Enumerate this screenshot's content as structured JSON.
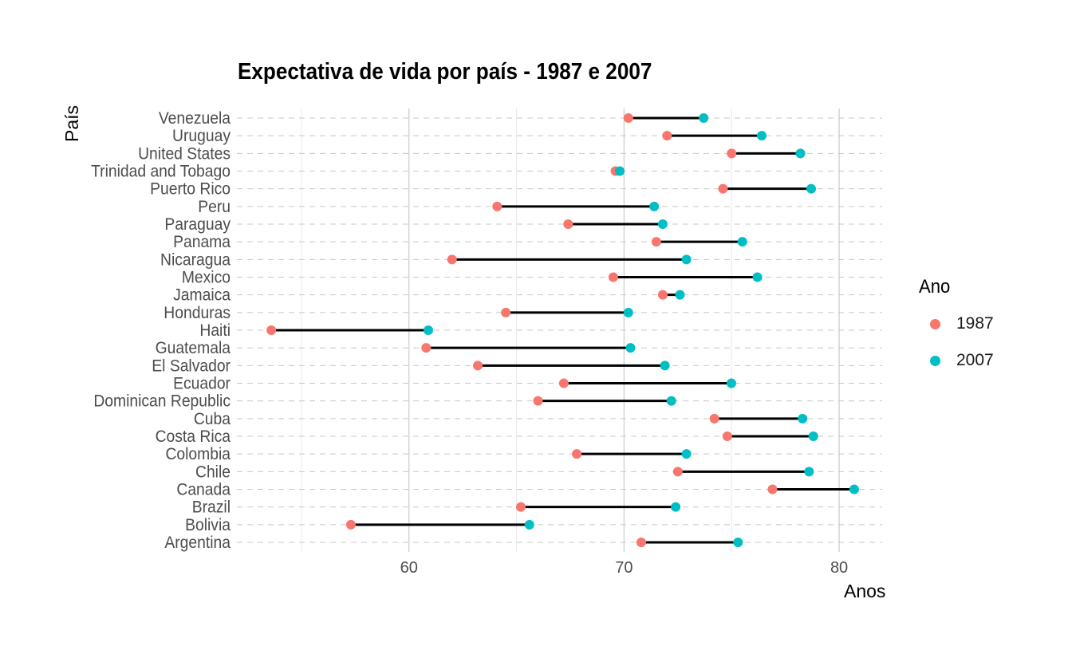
{
  "chart_data": {
    "type": "dumbbell",
    "title": "Expectativa de vida por país - 1987 e 2007",
    "xlabel": "Anos",
    "ylabel": "País",
    "xlim": [
      52,
      82
    ],
    "x_ticks": [
      60,
      70,
      80
    ],
    "grid": true,
    "legend_title": "Ano",
    "legend_position": "right",
    "countries": [
      "Argentina",
      "Bolivia",
      "Brazil",
      "Canada",
      "Chile",
      "Colombia",
      "Costa Rica",
      "Cuba",
      "Dominican Republic",
      "Ecuador",
      "El Salvador",
      "Guatemala",
      "Haiti",
      "Honduras",
      "Jamaica",
      "Mexico",
      "Nicaragua",
      "Panama",
      "Paraguay",
      "Peru",
      "Puerto Rico",
      "Trinidad and Tobago",
      "United States",
      "Uruguay",
      "Venezuela"
    ],
    "series": [
      {
        "name": "1987",
        "color": "#F8766D",
        "values": [
          70.8,
          57.3,
          65.2,
          76.9,
          72.5,
          67.8,
          74.8,
          74.2,
          66.0,
          67.2,
          63.2,
          60.8,
          53.6,
          64.5,
          71.8,
          69.5,
          62.0,
          71.5,
          67.4,
          64.1,
          74.6,
          69.6,
          75.0,
          72.0,
          70.2
        ]
      },
      {
        "name": "2007",
        "color": "#00BFC4",
        "values": [
          75.3,
          65.6,
          72.4,
          80.7,
          78.6,
          72.9,
          78.8,
          78.3,
          72.2,
          74.99,
          71.9,
          70.3,
          60.9,
          70.2,
          72.6,
          76.2,
          72.9,
          75.5,
          71.8,
          71.4,
          78.7,
          69.8,
          78.2,
          76.4,
          73.7
        ]
      }
    ]
  }
}
